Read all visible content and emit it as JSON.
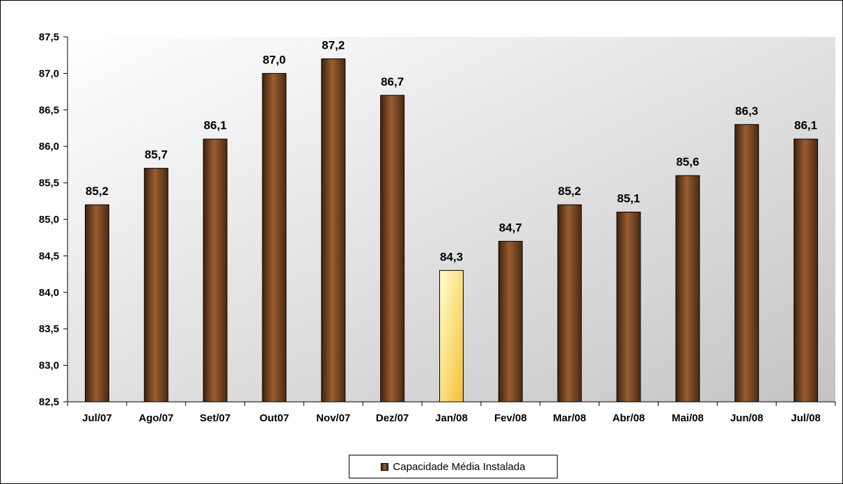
{
  "chart_data": {
    "type": "bar",
    "title": "",
    "categories": [
      "Jul/07",
      "Ago/07",
      "Set/07",
      "Out07",
      "Nov/07",
      "Dez/07",
      "Jan/08",
      "Fev/08",
      "Mar/08",
      "Abr/08",
      "Mai/08",
      "Jun/08",
      "Jul/08"
    ],
    "series": [
      {
        "name": "Capacidade Média Instalada",
        "values": [
          85.2,
          85.7,
          86.1,
          87.0,
          87.2,
          86.7,
          84.3,
          84.7,
          85.2,
          85.1,
          85.6,
          86.3,
          86.1
        ],
        "data_labels": [
          "85,2",
          "85,7",
          "86,1",
          "87,0",
          "87,2",
          "86,7",
          "84,3",
          "84,7",
          "85,2",
          "85,1",
          "85,6",
          "86,3",
          "86,1"
        ]
      }
    ],
    "yticks": [
      82.5,
      83.0,
      83.5,
      84.0,
      84.5,
      85.0,
      85.5,
      86.0,
      86.5,
      87.0,
      87.5
    ],
    "ytick_labels": [
      "82,5",
      "83,0",
      "83,5",
      "84,0",
      "84,5",
      "85,0",
      "85,5",
      "86,0",
      "86,5",
      "87,0",
      "87,5"
    ],
    "ylim": [
      82.5,
      87.5
    ],
    "xlabel": "",
    "ylabel": "",
    "grid": false,
    "legend_position": "bottom",
    "colors": {
      "bar_dark": "#3d220f",
      "bar_mid": "#9a5d30",
      "bar_light": "#4a2a12",
      "highlight_light": "#ffffd0",
      "highlight_dark": "#f5c034",
      "plot_bg_light": "#ffffff",
      "plot_bg_dark": "#c4c4c4"
    },
    "highlight_index": 6
  }
}
